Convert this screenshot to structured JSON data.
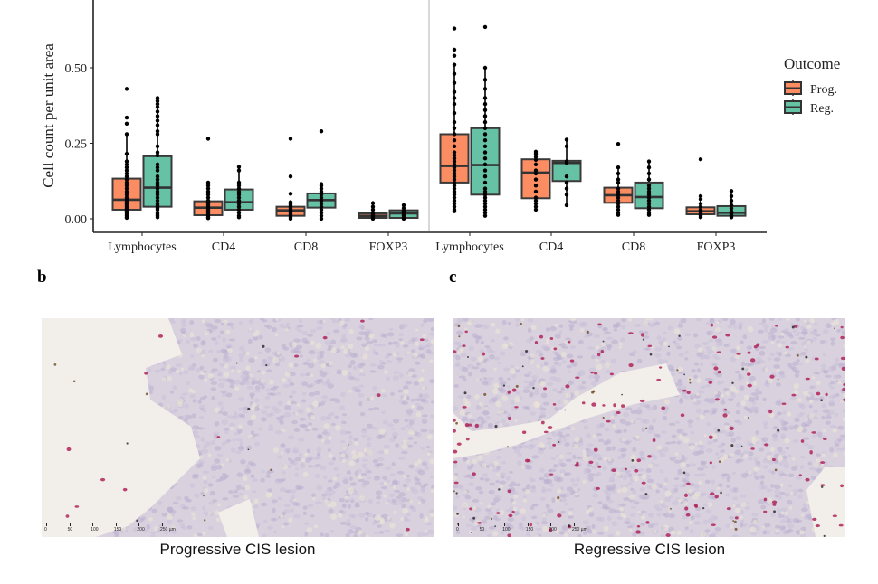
{
  "chart_data": {
    "type": "box",
    "ylabel": "Cell count per unit area",
    "y_ticks": [
      "0.00",
      "0.25",
      "0.50"
    ],
    "y_tick_values": [
      0.0,
      0.25,
      0.5
    ],
    "ylim": [
      -0.02,
      0.72
    ],
    "categories": [
      "Lymphocytes",
      "CD4",
      "CD8",
      "FOXP3"
    ],
    "legend": {
      "title": "Outcome",
      "position": "right",
      "entries": [
        {
          "label": "Prog.",
          "color": "#fc8d62"
        },
        {
          "label": "Reg.",
          "color": "#66c2a5"
        }
      ]
    },
    "panels": [
      {
        "name": "left",
        "groups": [
          {
            "category": "Lymphocytes",
            "series": "Prog.",
            "q1": 0.03,
            "median": 0.063,
            "q3": 0.133,
            "whisker_low": 0.003,
            "whisker_high": 0.28,
            "points": [
              0.43,
              0.335,
              0.315,
              0.28,
              0.215,
              0.19,
              0.18,
              0.17,
              0.16,
              0.15,
              0.14,
              0.13,
              0.12,
              0.11,
              0.1,
              0.09,
              0.08,
              0.07,
              0.065,
              0.06,
              0.055,
              0.05,
              0.045,
              0.04,
              0.035,
              0.03,
              0.025,
              0.02,
              0.015,
              0.01,
              0.005,
              0.003
            ]
          },
          {
            "category": "Lymphocytes",
            "series": "Reg.",
            "q1": 0.04,
            "median": 0.103,
            "q3": 0.207,
            "whisker_low": 0.005,
            "whisker_high": 0.4,
            "points": [
              0.4,
              0.39,
              0.38,
              0.37,
              0.355,
              0.34,
              0.325,
              0.31,
              0.29,
              0.28,
              0.24,
              0.22,
              0.21,
              0.18,
              0.17,
              0.16,
              0.14,
              0.13,
              0.12,
              0.115,
              0.11,
              0.1,
              0.09,
              0.08,
              0.07,
              0.06,
              0.05,
              0.045,
              0.04,
              0.035,
              0.03,
              0.02,
              0.015,
              0.01,
              0.005
            ]
          },
          {
            "category": "CD4",
            "series": "Prog.",
            "q1": 0.012,
            "median": 0.037,
            "q3": 0.058,
            "whisker_low": 0.002,
            "whisker_high": 0.12,
            "points": [
              0.265,
              0.12,
              0.11,
              0.1,
              0.09,
              0.08,
              0.07,
              0.06,
              0.055,
              0.05,
              0.045,
              0.04,
              0.035,
              0.03,
              0.025,
              0.02,
              0.015,
              0.01,
              0.005,
              0.002
            ]
          },
          {
            "category": "CD4",
            "series": "Reg.",
            "q1": 0.03,
            "median": 0.055,
            "q3": 0.097,
            "whisker_low": 0.005,
            "whisker_high": 0.172,
            "points": [
              0.172,
              0.16,
              0.12,
              0.11,
              0.1,
              0.09,
              0.08,
              0.07,
              0.06,
              0.05,
              0.04,
              0.03,
              0.02,
              0.01,
              0.005
            ]
          },
          {
            "category": "CD8",
            "series": "Prog.",
            "q1": 0.01,
            "median": 0.028,
            "q3": 0.04,
            "whisker_low": 0.0,
            "whisker_high": 0.055,
            "points": [
              0.265,
              0.14,
              0.083,
              0.055,
              0.05,
              0.045,
              0.04,
              0.035,
              0.03,
              0.025,
              0.02,
              0.015,
              0.01,
              0.005,
              0.0
            ]
          },
          {
            "category": "CD8",
            "series": "Reg.",
            "q1": 0.037,
            "median": 0.062,
            "q3": 0.084,
            "whisker_low": 0.0,
            "whisker_high": 0.115,
            "points": [
              0.29,
              0.115,
              0.11,
              0.1,
              0.09,
              0.08,
              0.07,
              0.06,
              0.05,
              0.04,
              0.03,
              0.02,
              0.01,
              0.0
            ]
          },
          {
            "category": "FOXP3",
            "series": "Prog.",
            "q1": 0.003,
            "median": 0.01,
            "q3": 0.018,
            "whisker_low": 0.0,
            "whisker_high": 0.052,
            "points": [
              0.052,
              0.04,
              0.03,
              0.02,
              0.015,
              0.01,
              0.005,
              0.0
            ]
          },
          {
            "category": "FOXP3",
            "series": "Reg.",
            "q1": 0.003,
            "median": 0.018,
            "q3": 0.028,
            "whisker_low": 0.0,
            "whisker_high": 0.045,
            "points": [
              0.045,
              0.035,
              0.025,
              0.02,
              0.015,
              0.01,
              0.005,
              0.0
            ]
          }
        ]
      },
      {
        "name": "right",
        "groups": [
          {
            "category": "Lymphocytes",
            "series": "Prog.",
            "q1": 0.12,
            "median": 0.175,
            "q3": 0.28,
            "whisker_low": 0.025,
            "whisker_high": 0.51,
            "points": [
              0.63,
              0.56,
              0.54,
              0.51,
              0.48,
              0.45,
              0.42,
              0.4,
              0.38,
              0.35,
              0.32,
              0.3,
              0.28,
              0.26,
              0.24,
              0.22,
              0.21,
              0.2,
              0.19,
              0.18,
              0.17,
              0.16,
              0.15,
              0.14,
              0.13,
              0.12,
              0.11,
              0.1,
              0.09,
              0.08,
              0.07,
              0.06,
              0.05,
              0.04,
              0.03,
              0.025
            ]
          },
          {
            "category": "Lymphocytes",
            "series": "Reg.",
            "q1": 0.08,
            "median": 0.178,
            "q3": 0.3,
            "whisker_low": 0.01,
            "whisker_high": 0.5,
            "points": [
              0.635,
              0.5,
              0.46,
              0.43,
              0.4,
              0.38,
              0.36,
              0.34,
              0.32,
              0.3,
              0.28,
              0.26,
              0.24,
              0.22,
              0.2,
              0.18,
              0.16,
              0.14,
              0.12,
              0.1,
              0.09,
              0.08,
              0.07,
              0.06,
              0.05,
              0.04,
              0.03,
              0.02,
              0.01
            ]
          },
          {
            "category": "CD4",
            "series": "Prog.",
            "q1": 0.068,
            "median": 0.153,
            "q3": 0.197,
            "whisker_low": 0.03,
            "whisker_high": 0.222,
            "points": [
              0.222,
              0.215,
              0.205,
              0.195,
              0.18,
              0.16,
              0.15,
              0.13,
              0.11,
              0.09,
              0.07,
              0.06,
              0.05,
              0.04,
              0.03
            ]
          },
          {
            "category": "CD4",
            "series": "Reg.",
            "q1": 0.125,
            "median": 0.185,
            "q3": 0.192,
            "whisker_low": 0.045,
            "whisker_high": 0.262,
            "points": [
              0.262,
              0.24,
              0.19,
              0.185,
              0.14,
              0.12,
              0.1,
              0.08,
              0.045
            ]
          },
          {
            "category": "CD8",
            "series": "Prog.",
            "q1": 0.053,
            "median": 0.078,
            "q3": 0.103,
            "whisker_low": 0.013,
            "whisker_high": 0.17,
            "points": [
              0.248,
              0.17,
              0.15,
              0.13,
              0.12,
              0.1,
              0.09,
              0.08,
              0.07,
              0.06,
              0.05,
              0.04,
              0.03,
              0.02,
              0.013
            ]
          },
          {
            "category": "CD8",
            "series": "Reg.",
            "q1": 0.035,
            "median": 0.072,
            "q3": 0.12,
            "whisker_low": 0.013,
            "whisker_high": 0.19,
            "points": [
              0.19,
              0.17,
              0.15,
              0.13,
              0.11,
              0.1,
              0.09,
              0.08,
              0.07,
              0.06,
              0.05,
              0.04,
              0.03,
              0.02,
              0.013
            ]
          },
          {
            "category": "FOXP3",
            "series": "Prog.",
            "q1": 0.015,
            "median": 0.025,
            "q3": 0.038,
            "whisker_low": 0.005,
            "whisker_high": 0.075,
            "points": [
              0.197,
              0.075,
              0.065,
              0.05,
              0.04,
              0.03,
              0.025,
              0.02,
              0.015,
              0.01,
              0.005
            ]
          },
          {
            "category": "FOXP3",
            "series": "Reg.",
            "q1": 0.01,
            "median": 0.02,
            "q3": 0.042,
            "whisker_low": 0.005,
            "whisker_high": 0.092,
            "points": [
              0.092,
              0.075,
              0.06,
              0.045,
              0.035,
              0.025,
              0.02,
              0.015,
              0.01,
              0.005
            ]
          }
        ]
      }
    ]
  },
  "figure": {
    "panel_b_letter": "b",
    "panel_c_letter": "c",
    "image_b_caption": "Progressive CIS lesion",
    "image_c_caption": "Regressive CIS lesion",
    "scale_bar": {
      "labels": [
        "0",
        "50",
        "100",
        "150",
        "200",
        "250 µm"
      ]
    },
    "colors": {
      "prog": "#fc8d62",
      "reg": "#66c2a5",
      "outline": "#333333",
      "divider": "#cccccc"
    }
  }
}
